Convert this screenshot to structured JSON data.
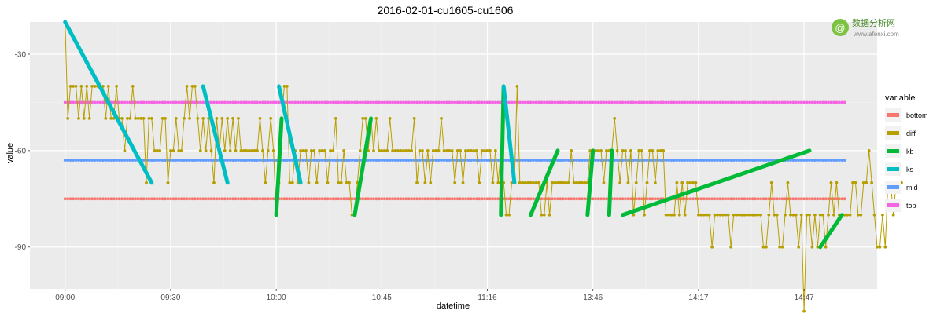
{
  "watermark": {
    "name": "数据分析网",
    "url": "www.afenxi.com",
    "accent": "#7cc243"
  },
  "chart_data": {
    "type": "line",
    "title": "2016-02-01-cu1605-cu1606",
    "xlabel": "datetime",
    "ylabel": "value",
    "ylim": [
      -103,
      -20
    ],
    "y_ticks": [
      -30,
      -60,
      -90
    ],
    "x_tick_labels": [
      "09:00",
      "09:30",
      "10:00",
      "10:45",
      "11:16",
      "13:46",
      "14:17",
      "14:47"
    ],
    "x_tick_positions": [
      0,
      39,
      78,
      117,
      156,
      195,
      234,
      273
    ],
    "x_range": [
      -13,
      300
    ],
    "grid": true,
    "legend": {
      "title": "variable",
      "position": "right",
      "entries": [
        {
          "name": "bottom",
          "color": "#F8766D"
        },
        {
          "name": "diff",
          "color": "#B79F00"
        },
        {
          "name": "kb",
          "color": "#00BA38"
        },
        {
          "name": "ks",
          "color": "#00BFC4"
        },
        {
          "name": "mid",
          "color": "#619CFF"
        },
        {
          "name": "top",
          "color": "#F564E3"
        }
      ]
    },
    "series": [
      {
        "name": "top",
        "color": "#F564E3",
        "style": "points",
        "x_start": 0,
        "x_end": 288,
        "value": -45
      },
      {
        "name": "mid",
        "color": "#619CFF",
        "style": "points",
        "x_start": 0,
        "x_end": 288,
        "value": -63
      },
      {
        "name": "bottom",
        "color": "#F8766D",
        "style": "points",
        "x_start": 0,
        "x_end": 288,
        "value": -75
      },
      {
        "name": "diff",
        "color": "#B79F00",
        "style": "line+points",
        "values": [
          -20,
          -50,
          -40,
          -40,
          -40,
          -50,
          -40,
          -50,
          -40,
          -50,
          -40,
          -40,
          -40,
          -40,
          -40,
          -50,
          -40,
          -50,
          -50,
          -40,
          -50,
          -50,
          -60,
          -50,
          -50,
          -40,
          -50,
          -50,
          -50,
          -50,
          -70,
          -50,
          -50,
          -60,
          -60,
          -60,
          -50,
          -50,
          -70,
          -60,
          -60,
          -50,
          -60,
          -60,
          -50,
          -40,
          -50,
          -40,
          -40,
          -50,
          -60,
          -50,
          -60,
          -50,
          -60,
          -70,
          -50,
          -60,
          -50,
          -60,
          -50,
          -60,
          -50,
          -60,
          -50,
          -60,
          -60,
          -60,
          -60,
          -60,
          -60,
          -60,
          -50,
          -60,
          -70,
          -60,
          -50,
          -60,
          -80,
          -70,
          -50,
          -40,
          -40,
          -70,
          -70,
          -60,
          -70,
          -60,
          -60,
          -60,
          -70,
          -60,
          -60,
          -70,
          -60,
          -60,
          -60,
          -70,
          -60,
          -60,
          -50,
          -70,
          -70,
          -60,
          -70,
          -70,
          -80,
          -80,
          -70,
          -60,
          -50,
          -50,
          -60,
          -50,
          -60,
          -50,
          -60,
          -60,
          -60,
          -60,
          -50,
          -60,
          -60,
          -60,
          -60,
          -60,
          -60,
          -60,
          -60,
          -50,
          -70,
          -60,
          -60,
          -70,
          -60,
          -70,
          -60,
          -60,
          -60,
          -50,
          -60,
          -60,
          -60,
          -60,
          -70,
          -60,
          -60,
          -70,
          -60,
          -60,
          -60,
          -60,
          -60,
          -70,
          -60,
          -60,
          -60,
          -60,
          -70,
          -60,
          -70,
          -60,
          -70,
          -80,
          -80,
          -70,
          -70,
          -40,
          -70,
          -70,
          -70,
          -70,
          -70,
          -70,
          -70,
          -70,
          -80,
          -80,
          -70,
          -80,
          -70,
          -70,
          -70,
          -70,
          -70,
          -70,
          -70,
          -60,
          -70,
          -70,
          -70,
          -70,
          -70,
          -70,
          -60,
          -60,
          -60,
          -60,
          -60,
          -70,
          -60,
          -60,
          -60,
          -50,
          -60,
          -70,
          -60,
          -60,
          -70,
          -60,
          -80,
          -70,
          -60,
          -60,
          -80,
          -70,
          -60,
          -60,
          -70,
          -60,
          -60,
          -60,
          -80,
          -80,
          -80,
          -80,
          -70,
          -80,
          -70,
          -80,
          -70,
          -70,
          -70,
          -70,
          -80,
          -80,
          -80,
          -80,
          -80,
          -90,
          -80,
          -80,
          -80,
          -80,
          -80,
          -80,
          -90,
          -80,
          -80,
          -80,
          -80,
          -80,
          -80,
          -80,
          -80,
          -80,
          -80,
          -80,
          -90,
          -90,
          -80,
          -70,
          -80,
          -80,
          -90,
          -90,
          -80,
          -70,
          -80,
          -80,
          -80,
          -90,
          -80,
          -110,
          -80,
          -80,
          -90,
          -80,
          -90,
          -80,
          -80,
          -90,
          -80,
          -70,
          -80,
          -70,
          -80,
          -80,
          -80,
          -80,
          -80,
          -70,
          -70,
          -80,
          -80,
          -70,
          -70,
          -60,
          -70,
          -80,
          -90,
          -90,
          -80,
          -90,
          -70,
          -70,
          -80,
          -70,
          -70,
          -70
        ]
      },
      {
        "name": "kb",
        "color": "#00BA38",
        "style": "thick-segments",
        "segments": [
          [
            [
              78,
              -80
            ],
            [
              80,
              -50
            ]
          ],
          [
            [
              107,
              -80
            ],
            [
              113,
              -50
            ]
          ],
          [
            [
              161,
              -80
            ],
            [
              162,
              -40
            ]
          ],
          [
            [
              172,
              -80
            ],
            [
              182,
              -60
            ]
          ],
          [
            [
              193,
              -80
            ],
            [
              195,
              -60
            ]
          ],
          [
            [
              201,
              -80
            ],
            [
              202,
              -60
            ]
          ],
          [
            [
              206,
              -80
            ],
            [
              275,
              -60
            ]
          ],
          [
            [
              279,
              -90
            ],
            [
              287,
              -80
            ]
          ]
        ]
      },
      {
        "name": "ks",
        "color": "#00BFC4",
        "style": "thick-segments",
        "segments": [
          [
            [
              0,
              -20
            ],
            [
              32,
              -70
            ]
          ],
          [
            [
              51,
              -40
            ],
            [
              60,
              -70
            ]
          ],
          [
            [
              79,
              -40
            ],
            [
              87,
              -70
            ]
          ],
          [
            [
              162,
              -40
            ],
            [
              166,
              -70
            ]
          ]
        ]
      }
    ]
  }
}
